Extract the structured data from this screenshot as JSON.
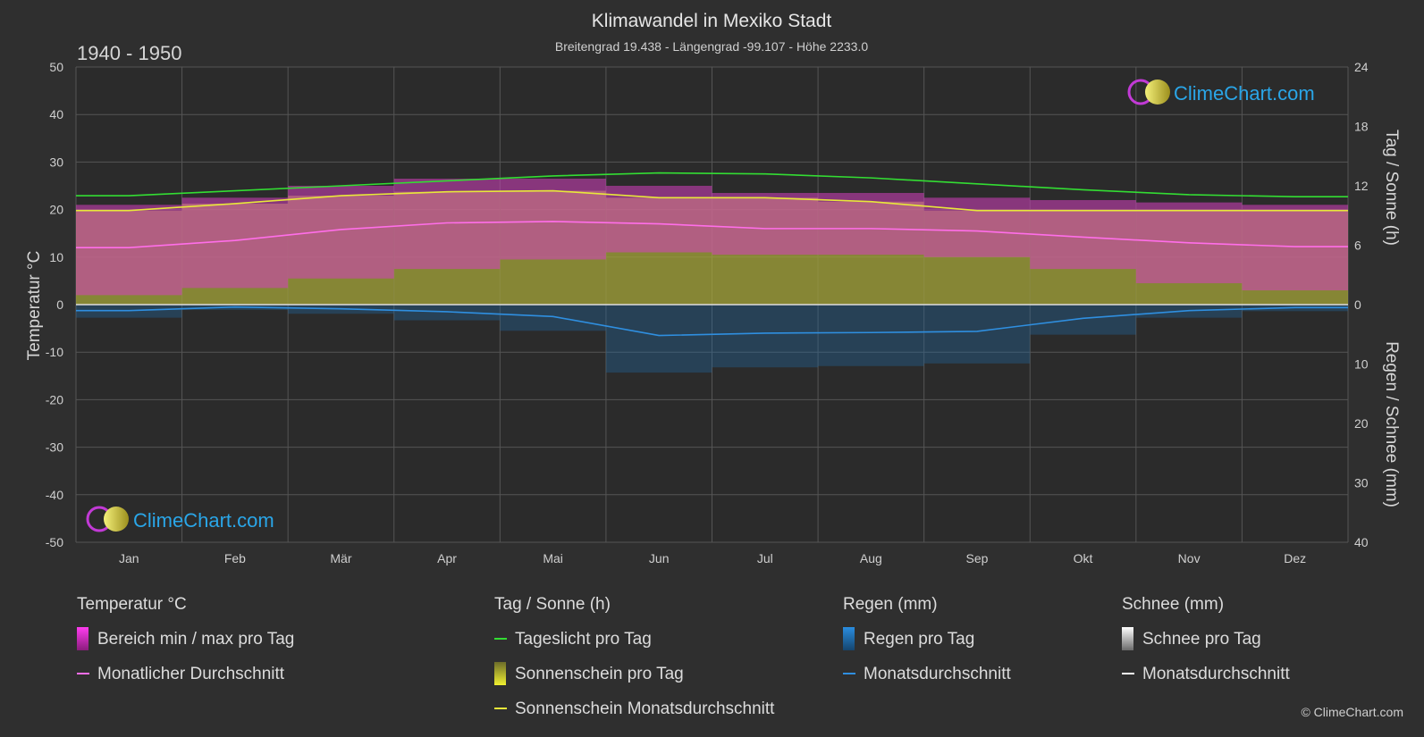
{
  "header": {
    "title": "Klimawandel in Mexiko Stadt",
    "subtitle": "Breitengrad 19.438 - Längengrad -99.107 - Höhe 2233.0",
    "period": "1940 - 1950"
  },
  "brand": {
    "name": "ClimeChart.com",
    "copyright": "© ClimeChart.com"
  },
  "colors": {
    "background": "#2f2f2f",
    "temp_range": "#d63fbf",
    "temp_avg": "#ff6ee9",
    "daylight": "#33dd33",
    "sunshine_fill": "#a6a63a",
    "sunshine_avg": "#e8e83a",
    "rain_fill": "#1f6aa5",
    "rain_avg": "#2f8fe0",
    "snow_avg": "#ffffff",
    "brand": "#2aa6e8"
  },
  "chart_data": {
    "type": "area",
    "categories": [
      "Jan",
      "Feb",
      "Mär",
      "Apr",
      "Mai",
      "Jun",
      "Jul",
      "Aug",
      "Sep",
      "Okt",
      "Nov",
      "Dez"
    ],
    "axes": {
      "left": {
        "label": "Temperatur °C",
        "range": [
          -50,
          50
        ],
        "ticks": [
          "50",
          "40",
          "30",
          "20",
          "10",
          "0",
          "-10",
          "-20",
          "-30",
          "-40",
          "-50"
        ]
      },
      "right_top": {
        "label": "Tag / Sonne (h)",
        "range": [
          0,
          24
        ],
        "ticks": [
          "24",
          "18",
          "12",
          "6",
          "0"
        ]
      },
      "right_bottom": {
        "label": "Regen / Schnee (mm)",
        "range": [
          0,
          40
        ],
        "ticks": [
          "0",
          "10",
          "20",
          "30",
          "40"
        ]
      }
    },
    "grid": true,
    "series": [
      {
        "name": "Tageslicht pro Tag",
        "unit": "h",
        "values": [
          11.0,
          11.5,
          12.0,
          12.5,
          13.0,
          13.3,
          13.2,
          12.8,
          12.2,
          11.6,
          11.1,
          10.9
        ]
      },
      {
        "name": "Sonnenschein Monatsdurchschnitt",
        "unit": "h",
        "values": [
          9.5,
          10.2,
          11.0,
          11.4,
          11.5,
          10.8,
          10.8,
          10.4,
          9.5,
          9.5,
          9.5,
          9.5
        ]
      },
      {
        "name": "Monatlicher Durchschnitt",
        "unit": "°C",
        "values": [
          12.0,
          13.5,
          15.8,
          17.2,
          17.5,
          17.0,
          16.0,
          16.0,
          15.5,
          14.2,
          13.0,
          12.2
        ]
      },
      {
        "name": "Bereich min / max pro Tag",
        "unit": "°C",
        "max": [
          21.0,
          22.5,
          25.0,
          26.5,
          26.5,
          25.0,
          23.5,
          23.5,
          22.5,
          22.0,
          21.5,
          21.0
        ],
        "min": [
          2.0,
          3.5,
          5.5,
          7.5,
          9.5,
          11.0,
          10.5,
          10.5,
          10.0,
          7.5,
          4.5,
          3.0
        ]
      },
      {
        "name": "Regen Monatsdurchschnitt",
        "unit": "mm",
        "values": [
          1.0,
          0.4,
          0.7,
          1.2,
          2.0,
          5.2,
          4.8,
          4.7,
          4.5,
          2.3,
          1.0,
          0.5
        ]
      },
      {
        "name": "Schnee Monatsdurchschnitt",
        "unit": "mm",
        "values": [
          0,
          0,
          0,
          0,
          0,
          0,
          0,
          0,
          0,
          0,
          0,
          0
        ]
      }
    ]
  },
  "legend": {
    "groups": [
      {
        "heading": "Temperatur °C",
        "items": [
          {
            "label": "Bereich min / max pro Tag",
            "icon": "swatch-magenta"
          },
          {
            "label": "Monatlicher Durchschnitt",
            "icon": "line-pink"
          }
        ]
      },
      {
        "heading": "Tag / Sonne (h)",
        "items": [
          {
            "label": "Tageslicht pro Tag",
            "icon": "line-green"
          },
          {
            "label": "Sonnenschein pro Tag",
            "icon": "swatch-yellow"
          },
          {
            "label": "Sonnenschein Monatsdurchschnitt",
            "icon": "line-yellow"
          }
        ]
      },
      {
        "heading": "Regen (mm)",
        "items": [
          {
            "label": "Regen pro Tag",
            "icon": "swatch-blue"
          },
          {
            "label": "Monatsdurchschnitt",
            "icon": "line-blue"
          }
        ]
      },
      {
        "heading": "Schnee (mm)",
        "items": [
          {
            "label": "Schnee pro Tag",
            "icon": "swatch-white"
          },
          {
            "label": "Monatsdurchschnitt",
            "icon": "line-white"
          }
        ]
      }
    ]
  }
}
